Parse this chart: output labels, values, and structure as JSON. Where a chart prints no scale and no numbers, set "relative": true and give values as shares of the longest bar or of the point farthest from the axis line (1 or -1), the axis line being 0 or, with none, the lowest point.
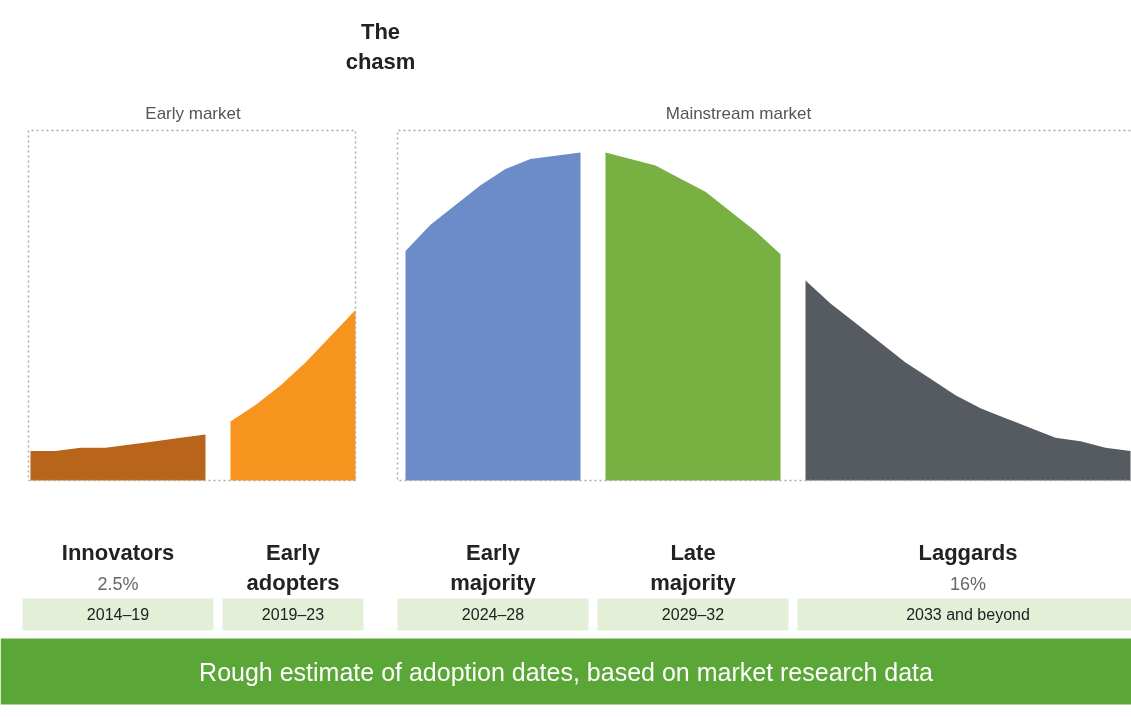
{
  "chart_data": {
    "type": "area",
    "relative": true,
    "categories": [
      null,
      null,
      null,
      null,
      null,
      null,
      null,
      null,
      null,
      null,
      null,
      null,
      null,
      null,
      null,
      null,
      null,
      null,
      null,
      null,
      null,
      null,
      null,
      null,
      null,
      null,
      null,
      null,
      null,
      null,
      null,
      null,
      null,
      null,
      null,
      null,
      null,
      null,
      null,
      null,
      null,
      null,
      null,
      null,
      null
    ],
    "series": [
      {
        "name": "Innovators",
        "color": "#b8651b",
        "values": [
          0.09,
          0.09,
          0.1,
          0.1,
          0.11,
          0.12,
          0.13,
          0.14,
          null,
          null,
          null,
          null,
          null,
          null,
          null,
          null,
          null,
          null,
          null,
          null,
          null,
          null,
          null,
          null,
          null,
          null,
          null,
          null,
          null,
          null,
          null,
          null,
          null,
          null,
          null,
          null,
          null,
          null,
          null,
          null,
          null,
          null,
          null,
          null,
          null
        ]
      },
      {
        "name": "Early adopters",
        "color": "#f7941d",
        "values": [
          null,
          null,
          null,
          null,
          null,
          null,
          null,
          null,
          0.18,
          0.23,
          0.29,
          0.36,
          0.44,
          0.52,
          null,
          null,
          null,
          null,
          null,
          null,
          null,
          null,
          null,
          null,
          null,
          null,
          null,
          null,
          null,
          null,
          null,
          null,
          null,
          null,
          null,
          null,
          null,
          null,
          null,
          null,
          null,
          null,
          null,
          null,
          null
        ]
      },
      {
        "name": "Early majority",
        "color": "#6b8cc9",
        "values": [
          null,
          null,
          null,
          null,
          null,
          null,
          null,
          null,
          null,
          null,
          null,
          null,
          null,
          null,
          null,
          0.7,
          0.78,
          0.84,
          0.9,
          0.95,
          0.98,
          0.99,
          1.0,
          null,
          null,
          null,
          null,
          null,
          null,
          null,
          null,
          null,
          null,
          null,
          null,
          null,
          null,
          null,
          null,
          null,
          null,
          null,
          null,
          null,
          null
        ]
      },
      {
        "name": "Late majority",
        "color": "#79b042",
        "values": [
          null,
          null,
          null,
          null,
          null,
          null,
          null,
          null,
          null,
          null,
          null,
          null,
          null,
          null,
          null,
          null,
          null,
          null,
          null,
          null,
          null,
          null,
          null,
          1.0,
          0.98,
          0.96,
          0.92,
          0.88,
          0.82,
          0.76,
          0.69,
          null,
          null,
          null,
          null,
          null,
          null,
          null,
          null,
          null,
          null,
          null,
          null,
          null,
          null
        ]
      },
      {
        "name": "Laggards",
        "color": "#555b61",
        "values": [
          null,
          null,
          null,
          null,
          null,
          null,
          null,
          null,
          null,
          null,
          null,
          null,
          null,
          null,
          null,
          null,
          null,
          null,
          null,
          null,
          null,
          null,
          null,
          null,
          null,
          null,
          null,
          null,
          null,
          null,
          null,
          0.61,
          0.54,
          0.48,
          0.42,
          0.36,
          0.31,
          0.26,
          0.22,
          0.19,
          0.16,
          0.13,
          0.12,
          0.1,
          0.09
        ]
      }
    ],
    "annotations": [
      "The chasm",
      "Early market",
      "Mainstream market",
      "2.5%",
      "16%",
      "2014–19",
      "2019–23",
      "2024–28",
      "2029–32",
      "2033 and beyond",
      "Rough estimate of adoption dates, based on market research data"
    ]
  }
}
